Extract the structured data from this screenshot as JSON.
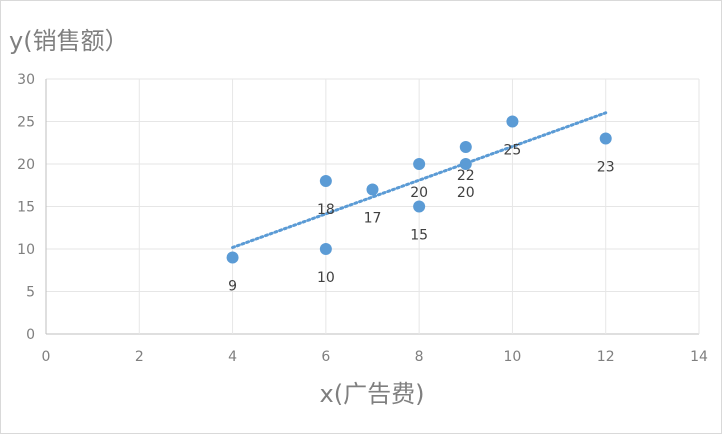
{
  "chart_data": {
    "type": "scatter",
    "xlabel": "x(广告费)",
    "ylabel": "y(销售额）",
    "xlim": [
      0,
      14
    ],
    "ylim": [
      0,
      30
    ],
    "xticks": [
      0,
      2,
      4,
      6,
      8,
      10,
      12,
      14
    ],
    "yticks": [
      0,
      5,
      10,
      15,
      20,
      25,
      30
    ],
    "grid": true,
    "legend": "none",
    "colors": {
      "point": "#5b9bd5",
      "trendline": "#5b9bd5",
      "grid": "#e6e6e6",
      "axis": "#bfbfbf",
      "axis_text": "#7f7f7f",
      "label_text": "#404040"
    },
    "points": [
      {
        "x": 4,
        "y": 9,
        "label": "9"
      },
      {
        "x": 6,
        "y": 18,
        "label": "18"
      },
      {
        "x": 6,
        "y": 10,
        "label": "10"
      },
      {
        "x": 7,
        "y": 17,
        "label": "17"
      },
      {
        "x": 8,
        "y": 20,
        "label": "20"
      },
      {
        "x": 8,
        "y": 15,
        "label": "15"
      },
      {
        "x": 9,
        "y": 22,
        "label": "22"
      },
      {
        "x": 9,
        "y": 20,
        "label": "20"
      },
      {
        "x": 10,
        "y": 25,
        "label": "25"
      },
      {
        "x": 12,
        "y": 23,
        "label": "23"
      }
    ],
    "trendline": {
      "type": "linear",
      "style": "dotted",
      "x_range": [
        4,
        12
      ]
    }
  }
}
